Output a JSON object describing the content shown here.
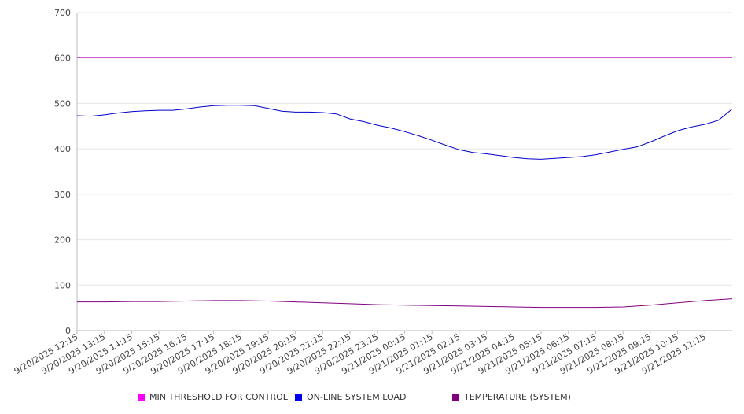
{
  "chart_data": {
    "type": "line",
    "title": "",
    "xlabel": "",
    "ylabel": "",
    "ylim": [
      0,
      700
    ],
    "yticks": [
      0,
      100,
      200,
      300,
      400,
      500,
      600,
      700
    ],
    "grid": true,
    "legend_position": "bottom",
    "categories": [
      "9/20/2025 12:15",
      "9/20/2025 13:15",
      "9/20/2025 14:15",
      "9/20/2025 15:15",
      "9/20/2025 16:15",
      "9/20/2025 17:15",
      "9/20/2025 18:15",
      "9/20/2025 19:15",
      "9/20/2025 20:15",
      "9/20/2025 21:15",
      "9/20/2025 22:15",
      "9/20/2025 23:15",
      "9/21/2025 00:15",
      "9/21/2025 01:15",
      "9/21/2025 02:15",
      "9/21/2025 03:15",
      "9/21/2025 04:15",
      "9/21/2025 05:15",
      "9/21/2025 06:15",
      "9/21/2025 07:15",
      "9/21/2025 08:15",
      "9/21/2025 09:15",
      "9/21/2025 10:15",
      "9/21/2025 11:15"
    ],
    "x_end_hours": 24,
    "series": [
      {
        "name": "MIN THRESHOLD FOR CONTROL",
        "color": "#cc00cc",
        "x": [
          0,
          24
        ],
        "values": [
          601,
          601
        ]
      },
      {
        "name": "ON-LINE SYSTEM LOAD",
        "color": "#0000cc",
        "x": [
          0,
          0.5,
          1,
          1.5,
          2,
          2.5,
          3,
          3.5,
          4,
          4.5,
          5,
          5.5,
          6,
          6.5,
          7,
          7.5,
          8,
          8.5,
          9,
          9.5,
          10,
          10.5,
          11,
          11.5,
          12,
          12.5,
          13,
          13.5,
          14,
          14.5,
          15,
          15.5,
          16,
          16.5,
          17,
          17.5,
          18,
          18.5,
          19,
          19.5,
          20,
          20.5,
          21,
          21.5,
          22,
          22.5,
          23,
          23.5,
          24
        ],
        "values": [
          473,
          472,
          475,
          479,
          482,
          484,
          485,
          485,
          488,
          492,
          495,
          496,
          496,
          495,
          489,
          483,
          481,
          481,
          480,
          477,
          466,
          460,
          452,
          446,
          438,
          429,
          419,
          408,
          398,
          392,
          389,
          385,
          381,
          378,
          377,
          379,
          381,
          383,
          387,
          393,
          399,
          404,
          415,
          428,
          440,
          448,
          454,
          463,
          488
        ]
      },
      {
        "name": "TEMPERATURE (SYSTEM)",
        "color": "#800080",
        "x": [
          0,
          1,
          2,
          3,
          4,
          5,
          6,
          7,
          8,
          9,
          10,
          11,
          12,
          13,
          14,
          15,
          16,
          17,
          18,
          19,
          20,
          21,
          22,
          23,
          24
        ],
        "values": [
          63,
          63,
          64,
          64,
          65,
          66,
          66,
          65,
          63,
          61,
          59,
          57,
          56,
          55,
          54,
          53,
          52,
          51,
          51,
          51,
          52,
          56,
          61,
          66,
          70
        ]
      }
    ]
  }
}
